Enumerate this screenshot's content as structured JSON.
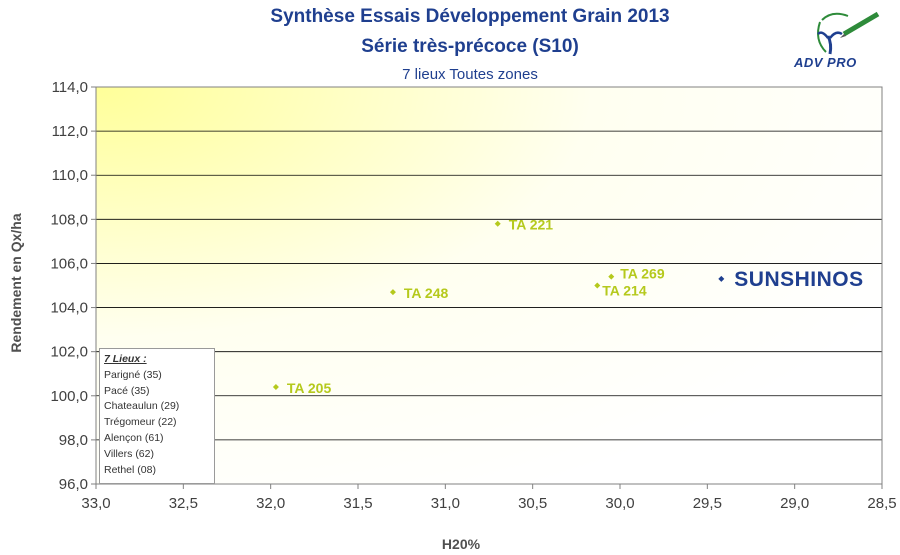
{
  "title": {
    "line1": "Synthèse Essais Développement Grain 2013",
    "line2": "Série très-précoce (S10)",
    "subtitle": "7 lieux Toutes zones"
  },
  "logo": {
    "text": "ADV PRO",
    "icon": "plant-pen-icon"
  },
  "legend": {
    "title": "7 Lieux :",
    "items": [
      "Parigné (35)",
      "Pacé (35)",
      "Chateaulun (29)",
      "Trégomeur (22)",
      "Alençon (61)",
      "Villers (62)",
      "Rethel (08)"
    ]
  },
  "colors": {
    "accent": "#b5c91c",
    "brand": "#1f3f8f",
    "grid": "#000000"
  },
  "chart_data": {
    "type": "scatter",
    "xlabel": "H20%",
    "ylabel": "Rendement en Qx/ha",
    "xlim": [
      33.0,
      28.5
    ],
    "x_reversed": true,
    "ylim": [
      96.0,
      114.0
    ],
    "xticks": [
      "33,0",
      "32,5",
      "32,0",
      "31,5",
      "31,0",
      "30,5",
      "30,0",
      "29,5",
      "29,0",
      "28,5"
    ],
    "yticks": [
      "96,0",
      "98,0",
      "100,0",
      "102,0",
      "104,0",
      "106,0",
      "108,0",
      "110,0",
      "112,0",
      "114,0"
    ],
    "points": [
      {
        "name": "TA 221",
        "x": 30.7,
        "y": 107.8,
        "color": "#b5c91c"
      },
      {
        "name": "TA 269",
        "x": 30.05,
        "y": 105.4,
        "color": "#b5c91c"
      },
      {
        "name": "TA 214",
        "x": 30.13,
        "y": 105.0,
        "color": "#b5c91c"
      },
      {
        "name": "TA 248",
        "x": 31.3,
        "y": 104.7,
        "color": "#b5c91c"
      },
      {
        "name": "TA 205",
        "x": 31.97,
        "y": 100.4,
        "color": "#b5c91c"
      },
      {
        "name": "SUNSHINOS",
        "x": 29.42,
        "y": 105.3,
        "color": "#1f3f8f"
      }
    ]
  }
}
